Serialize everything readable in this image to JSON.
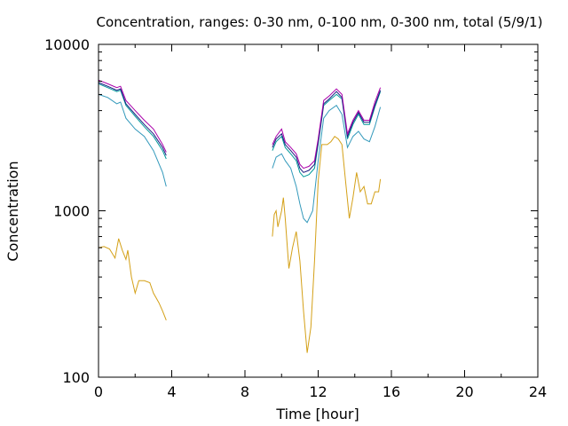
{
  "chart_data": {
    "type": "line",
    "title": "Concentration, ranges: 0-30 nm, 0-100 nm, 0-300 nm, total (5/9/1)",
    "xlabel": "Time [hour]",
    "ylabel": "Concentration",
    "xlim": [
      0,
      24
    ],
    "ylim": [
      100,
      10000
    ],
    "yscale": "log",
    "grid": false,
    "legend": "none",
    "xticks": [
      0,
      4,
      8,
      12,
      16,
      20,
      24
    ],
    "xtick_labels": [
      "0",
      "4",
      "8",
      "12",
      "16",
      "20",
      "24"
    ],
    "yticks": [
      100,
      1000,
      10000
    ],
    "ytick_labels": [
      "100",
      "1000",
      "10000"
    ],
    "series": [
      {
        "color": "#d4a017",
        "segments": [
          [
            [
              0,
              600
            ],
            [
              0.3,
              610
            ],
            [
              0.6,
              590
            ],
            [
              0.9,
              520
            ],
            [
              1.1,
              680
            ],
            [
              1.3,
              580
            ],
            [
              1.5,
              510
            ],
            [
              1.6,
              580
            ],
            [
              1.8,
              400
            ],
            [
              2.0,
              320
            ],
            [
              2.2,
              380
            ],
            [
              2.5,
              380
            ],
            [
              2.8,
              370
            ],
            [
              3.0,
              320
            ],
            [
              3.3,
              280
            ],
            [
              3.5,
              250
            ],
            [
              3.7,
              220
            ]
          ],
          [
            [
              9.5,
              700
            ],
            [
              9.6,
              950
            ],
            [
              9.7,
              1000
            ],
            [
              9.8,
              800
            ],
            [
              10.0,
              1000
            ],
            [
              10.1,
              1200
            ],
            [
              10.2,
              900
            ],
            [
              10.4,
              450
            ],
            [
              10.6,
              600
            ],
            [
              10.8,
              750
            ],
            [
              11.0,
              500
            ],
            [
              11.2,
              250
            ],
            [
              11.4,
              140
            ],
            [
              11.6,
              200
            ],
            [
              11.8,
              500
            ],
            [
              12.0,
              1500
            ],
            [
              12.2,
              2500
            ],
            [
              12.5,
              2500
            ],
            [
              12.7,
              2600
            ],
            [
              12.9,
              2800
            ],
            [
              13.1,
              2700
            ],
            [
              13.3,
              2500
            ],
            [
              13.5,
              1500
            ],
            [
              13.7,
              900
            ],
            [
              13.9,
              1200
            ],
            [
              14.1,
              1700
            ],
            [
              14.3,
              1300
            ],
            [
              14.5,
              1400
            ],
            [
              14.7,
              1100
            ],
            [
              14.9,
              1100
            ],
            [
              15.1,
              1300
            ],
            [
              15.3,
              1300
            ],
            [
              15.4,
              1550
            ]
          ]
        ]
      },
      {
        "color": "#3399bb",
        "segments": [
          [
            [
              0,
              5000
            ],
            [
              0.5,
              4800
            ],
            [
              1.0,
              4400
            ],
            [
              1.2,
              4500
            ],
            [
              1.5,
              3600
            ],
            [
              2.0,
              3100
            ],
            [
              2.5,
              2800
            ],
            [
              3.0,
              2300
            ],
            [
              3.5,
              1700
            ],
            [
              3.7,
              1400
            ]
          ],
          [
            [
              9.5,
              1800
            ],
            [
              9.7,
              2100
            ],
            [
              10.0,
              2200
            ],
            [
              10.2,
              2000
            ],
            [
              10.5,
              1800
            ],
            [
              10.8,
              1400
            ],
            [
              11.0,
              1100
            ],
            [
              11.2,
              900
            ],
            [
              11.4,
              850
            ],
            [
              11.7,
              1000
            ],
            [
              12.0,
              2000
            ],
            [
              12.3,
              3600
            ],
            [
              12.6,
              4000
            ],
            [
              13.0,
              4300
            ],
            [
              13.3,
              3800
            ],
            [
              13.6,
              2400
            ],
            [
              13.9,
              2800
            ],
            [
              14.2,
              3000
            ],
            [
              14.5,
              2700
            ],
            [
              14.8,
              2600
            ],
            [
              15.1,
              3200
            ],
            [
              15.4,
              4200
            ]
          ]
        ]
      },
      {
        "color": "#009999",
        "segments": [
          [
            [
              0,
              5800
            ],
            [
              0.5,
              5500
            ],
            [
              1.0,
              5200
            ],
            [
              1.2,
              5300
            ],
            [
              1.5,
              4300
            ],
            [
              2.0,
              3700
            ],
            [
              2.5,
              3200
            ],
            [
              3.0,
              2800
            ],
            [
              3.5,
              2300
            ],
            [
              3.7,
              2050
            ]
          ],
          [
            [
              9.5,
              2300
            ],
            [
              9.7,
              2600
            ],
            [
              10.0,
              2800
            ],
            [
              10.2,
              2400
            ],
            [
              10.5,
              2200
            ],
            [
              10.8,
              2000
            ],
            [
              11.0,
              1700
            ],
            [
              11.2,
              1600
            ],
            [
              11.5,
              1650
            ],
            [
              11.8,
              1800
            ],
            [
              12.0,
              2500
            ],
            [
              12.3,
              4300
            ],
            [
              12.6,
              4600
            ],
            [
              13.0,
              5000
            ],
            [
              13.3,
              4700
            ],
            [
              13.6,
              2700
            ],
            [
              13.9,
              3300
            ],
            [
              14.2,
              3800
            ],
            [
              14.5,
              3300
            ],
            [
              14.8,
              3300
            ],
            [
              15.1,
              4200
            ],
            [
              15.4,
              5200
            ]
          ]
        ]
      },
      {
        "color": "#1a1a80",
        "segments": [
          [
            [
              0,
              5900
            ],
            [
              0.5,
              5600
            ],
            [
              1.0,
              5300
            ],
            [
              1.2,
              5400
            ],
            [
              1.5,
              4400
            ],
            [
              2.0,
              3800
            ],
            [
              2.5,
              3300
            ],
            [
              3.0,
              2900
            ],
            [
              3.5,
              2400
            ],
            [
              3.7,
              2150
            ]
          ],
          [
            [
              9.5,
              2400
            ],
            [
              9.7,
              2700
            ],
            [
              10.0,
              2900
            ],
            [
              10.2,
              2500
            ],
            [
              10.5,
              2300
            ],
            [
              10.8,
              2100
            ],
            [
              11.0,
              1800
            ],
            [
              11.2,
              1700
            ],
            [
              11.5,
              1750
            ],
            [
              11.8,
              1900
            ],
            [
              12.0,
              2600
            ],
            [
              12.3,
              4400
            ],
            [
              12.6,
              4700
            ],
            [
              13.0,
              5200
            ],
            [
              13.3,
              4800
            ],
            [
              13.6,
              2800
            ],
            [
              13.9,
              3400
            ],
            [
              14.2,
              3900
            ],
            [
              14.5,
              3400
            ],
            [
              14.8,
              3400
            ],
            [
              15.1,
              4300
            ],
            [
              15.4,
              5300
            ]
          ]
        ]
      },
      {
        "color": "#aa00aa",
        "segments": [
          [
            [
              0,
              6100
            ],
            [
              0.5,
              5800
            ],
            [
              1.0,
              5500
            ],
            [
              1.2,
              5600
            ],
            [
              1.5,
              4600
            ],
            [
              2.0,
              4000
            ],
            [
              2.5,
              3500
            ],
            [
              3.0,
              3100
            ],
            [
              3.5,
              2500
            ],
            [
              3.7,
              2250
            ]
          ],
          [
            [
              9.5,
              2500
            ],
            [
              9.7,
              2800
            ],
            [
              10.0,
              3100
            ],
            [
              10.2,
              2600
            ],
            [
              10.5,
              2400
            ],
            [
              10.8,
              2200
            ],
            [
              11.0,
              1900
            ],
            [
              11.2,
              1800
            ],
            [
              11.5,
              1850
            ],
            [
              11.8,
              2000
            ],
            [
              12.0,
              2700
            ],
            [
              12.3,
              4600
            ],
            [
              12.6,
              4900
            ],
            [
              13.0,
              5400
            ],
            [
              13.3,
              5000
            ],
            [
              13.6,
              2900
            ],
            [
              13.9,
              3500
            ],
            [
              14.2,
              4000
            ],
            [
              14.5,
              3500
            ],
            [
              14.8,
              3500
            ],
            [
              15.1,
              4500
            ],
            [
              15.4,
              5500
            ]
          ]
        ]
      }
    ]
  }
}
